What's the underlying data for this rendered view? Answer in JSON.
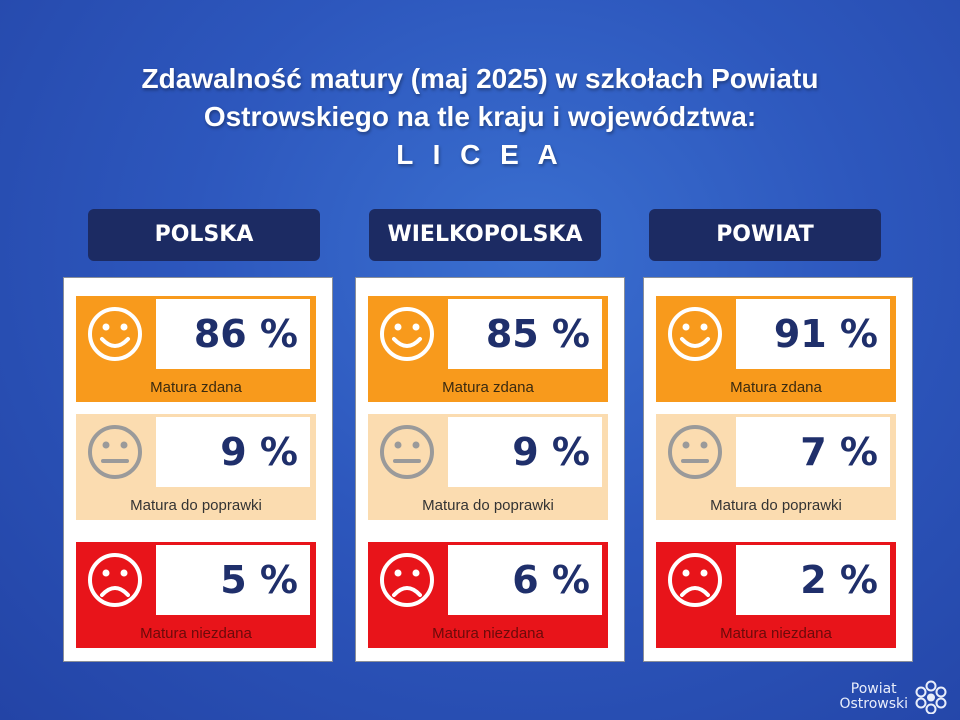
{
  "title": {
    "line1": "Zdawalność matury (maj 2025) w szkołach Powiatu",
    "line2": "Ostrowskiego na tle kraju i województwa:",
    "line3": "L I C E A"
  },
  "labels": {
    "passed": "Matura zdana",
    "retake": "Matura do poprawki",
    "failed": "Matura niezdana"
  },
  "columns": [
    {
      "header": "POLSKA",
      "passed": "86 %",
      "retake": "9 %",
      "failed": "5 %"
    },
    {
      "header": "WIELKOPOLSKA",
      "passed": "85 %",
      "retake": "9 %",
      "failed": "6 %"
    },
    {
      "header": "POWIAT",
      "passed": "91 %",
      "retake": "7 %",
      "failed": "2 %"
    }
  ],
  "logo": {
    "line1": "Powiat",
    "line2": "Ostrowski"
  },
  "colors": {
    "passed": "#f89a1c",
    "retake": "#fbdcb0",
    "failed": "#e8141a",
    "header": "#1c2b63",
    "value_text": "#1f2f6b"
  },
  "icons": {
    "passed": "smiley-face-icon",
    "retake": "neutral-face-icon",
    "failed": "sad-face-icon"
  }
}
